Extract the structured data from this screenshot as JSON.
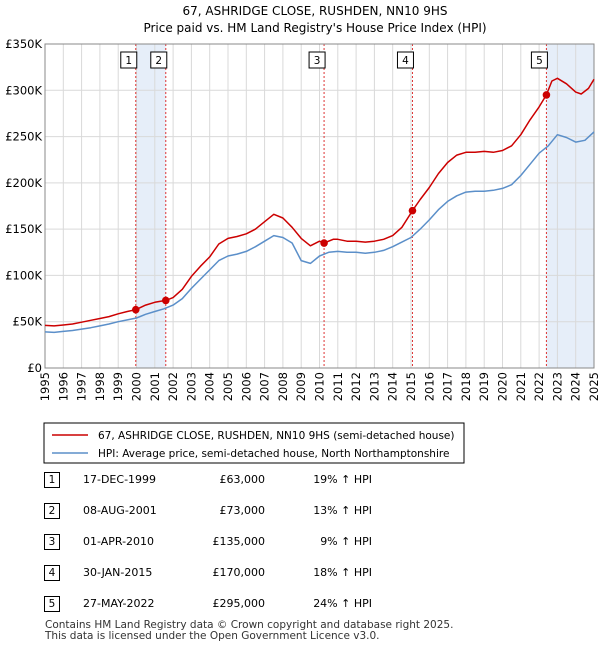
{
  "chart_data": {
    "type": "line",
    "title": "67, ASHRIDGE CLOSE, RUSHDEN, NN10 9HS",
    "subtitle": "Price paid vs. HM Land Registry's House Price Index (HPI)",
    "xlabel": "",
    "ylabel": "",
    "xlim": [
      1995,
      2025
    ],
    "ylim": [
      0,
      350000
    ],
    "grid": true,
    "x_ticks": [
      "1995",
      "1996",
      "1997",
      "1998",
      "1999",
      "2000",
      "2001",
      "2002",
      "2003",
      "2004",
      "2005",
      "2006",
      "2007",
      "2008",
      "2009",
      "2010",
      "2011",
      "2012",
      "2013",
      "2014",
      "2015",
      "2016",
      "2017",
      "2018",
      "2019",
      "2020",
      "2021",
      "2022",
      "2023",
      "2024",
      "2025"
    ],
    "y_ticks": [
      {
        "value": 0,
        "label": "£0"
      },
      {
        "value": 50000,
        "label": "£50K"
      },
      {
        "value": 100000,
        "label": "£100K"
      },
      {
        "value": 150000,
        "label": "£150K"
      },
      {
        "value": 200000,
        "label": "£200K"
      },
      {
        "value": 250000,
        "label": "£250K"
      },
      {
        "value": 300000,
        "label": "£300K"
      },
      {
        "value": 350000,
        "label": "£350K"
      }
    ],
    "series": [
      {
        "name": "67, ASHRIDGE CLOSE, RUSHDEN, NN10 9HS (semi-detached house)",
        "color": "#cc0000",
        "points": [
          [
            1995.0,
            46000
          ],
          [
            1995.5,
            45500
          ],
          [
            1996.0,
            46500
          ],
          [
            1996.5,
            47500
          ],
          [
            1997.0,
            49500
          ],
          [
            1997.5,
            51500
          ],
          [
            1998.0,
            53500
          ],
          [
            1998.5,
            55500
          ],
          [
            1999.0,
            58500
          ],
          [
            1999.5,
            61000
          ],
          [
            1999.96,
            63000
          ],
          [
            2000.5,
            68000
          ],
          [
            2001.0,
            71000
          ],
          [
            2001.6,
            73000
          ],
          [
            2002.0,
            76000
          ],
          [
            2002.5,
            85000
          ],
          [
            2003.0,
            99000
          ],
          [
            2003.5,
            110000
          ],
          [
            2004.0,
            120000
          ],
          [
            2004.5,
            134000
          ],
          [
            2005.0,
            140000
          ],
          [
            2005.5,
            142000
          ],
          [
            2006.0,
            145000
          ],
          [
            2006.5,
            150000
          ],
          [
            2007.0,
            158000
          ],
          [
            2007.5,
            166000
          ],
          [
            2008.0,
            162000
          ],
          [
            2008.5,
            152000
          ],
          [
            2009.0,
            140000
          ],
          [
            2009.5,
            132000
          ],
          [
            2010.0,
            137000
          ],
          [
            2010.25,
            135000
          ],
          [
            2010.75,
            139000
          ],
          [
            2011.0,
            139000
          ],
          [
            2011.5,
            137000
          ],
          [
            2012.0,
            137000
          ],
          [
            2012.5,
            136000
          ],
          [
            2013.0,
            137000
          ],
          [
            2013.5,
            139000
          ],
          [
            2014.0,
            143000
          ],
          [
            2014.5,
            152000
          ],
          [
            2015.08,
            170000
          ],
          [
            2015.5,
            182000
          ],
          [
            2016.0,
            195000
          ],
          [
            2016.5,
            210000
          ],
          [
            2017.0,
            222000
          ],
          [
            2017.5,
            230000
          ],
          [
            2018.0,
            233000
          ],
          [
            2018.5,
            233000
          ],
          [
            2019.0,
            234000
          ],
          [
            2019.5,
            233000
          ],
          [
            2020.0,
            235000
          ],
          [
            2020.5,
            240000
          ],
          [
            2021.0,
            252000
          ],
          [
            2021.5,
            268000
          ],
          [
            2022.0,
            282000
          ],
          [
            2022.4,
            295000
          ],
          [
            2022.7,
            310000
          ],
          [
            2023.0,
            313000
          ],
          [
            2023.5,
            307000
          ],
          [
            2024.0,
            298000
          ],
          [
            2024.3,
            296000
          ],
          [
            2024.7,
            302000
          ],
          [
            2025.0,
            312000
          ]
        ]
      },
      {
        "name": "HPI: Average price, semi-detached house, North Northamptonshire",
        "color": "#5b8fc9",
        "points": [
          [
            1995.0,
            39000
          ],
          [
            1995.5,
            38500
          ],
          [
            1996.0,
            39500
          ],
          [
            1996.5,
            40500
          ],
          [
            1997.0,
            42000
          ],
          [
            1997.5,
            43500
          ],
          [
            1998.0,
            45500
          ],
          [
            1998.5,
            47500
          ],
          [
            1999.0,
            50000
          ],
          [
            1999.5,
            52000
          ],
          [
            2000.0,
            54000
          ],
          [
            2000.5,
            58000
          ],
          [
            2001.0,
            61000
          ],
          [
            2001.5,
            64000
          ],
          [
            2002.0,
            68000
          ],
          [
            2002.5,
            75000
          ],
          [
            2003.0,
            86000
          ],
          [
            2003.5,
            96000
          ],
          [
            2004.0,
            106000
          ],
          [
            2004.5,
            116000
          ],
          [
            2005.0,
            121000
          ],
          [
            2005.5,
            123000
          ],
          [
            2006.0,
            126000
          ],
          [
            2006.5,
            131000
          ],
          [
            2007.0,
            137000
          ],
          [
            2007.5,
            143000
          ],
          [
            2008.0,
            141000
          ],
          [
            2008.5,
            135000
          ],
          [
            2009.0,
            116000
          ],
          [
            2009.5,
            113000
          ],
          [
            2010.0,
            121000
          ],
          [
            2010.5,
            125000
          ],
          [
            2011.0,
            126000
          ],
          [
            2011.5,
            125000
          ],
          [
            2012.0,
            125000
          ],
          [
            2012.5,
            124000
          ],
          [
            2013.0,
            125000
          ],
          [
            2013.5,
            127000
          ],
          [
            2014.0,
            131000
          ],
          [
            2014.5,
            136000
          ],
          [
            2015.0,
            141000
          ],
          [
            2015.5,
            150000
          ],
          [
            2016.0,
            160000
          ],
          [
            2016.5,
            171000
          ],
          [
            2017.0,
            180000
          ],
          [
            2017.5,
            186000
          ],
          [
            2018.0,
            190000
          ],
          [
            2018.5,
            191000
          ],
          [
            2019.0,
            191000
          ],
          [
            2019.5,
            192000
          ],
          [
            2020.0,
            194000
          ],
          [
            2020.5,
            198000
          ],
          [
            2021.0,
            208000
          ],
          [
            2021.5,
            220000
          ],
          [
            2022.0,
            232000
          ],
          [
            2022.5,
            240000
          ],
          [
            2023.0,
            252000
          ],
          [
            2023.5,
            249000
          ],
          [
            2024.0,
            244000
          ],
          [
            2024.5,
            246000
          ],
          [
            2025.0,
            255000
          ]
        ]
      }
    ],
    "sales": [
      {
        "label": "1",
        "x": 1999.96,
        "price": 63000,
        "date": "17-DEC-1999",
        "price_text": "£63,000",
        "hpi_text": "19% ↑ HPI"
      },
      {
        "label": "2",
        "x": 2001.6,
        "price": 73000,
        "date": "08-AUG-2001",
        "price_text": "£73,000",
        "hpi_text": "13% ↑ HPI"
      },
      {
        "label": "3",
        "x": 2010.25,
        "price": 135000,
        "date": "01-APR-2010",
        "price_text": "£135,000",
        "hpi_text": "9% ↑ HPI"
      },
      {
        "label": "4",
        "x": 2015.08,
        "price": 170000,
        "date": "30-JAN-2015",
        "price_text": "£170,000",
        "hpi_text": "18% ↑ HPI"
      },
      {
        "label": "5",
        "x": 2022.4,
        "price": 295000,
        "date": "27-MAY-2022",
        "price_text": "£295,000",
        "hpi_text": "24% ↑ HPI"
      }
    ],
    "shaded_spans": [
      [
        1999.96,
        2001.6
      ],
      [
        2022.4,
        2025.0
      ]
    ],
    "legend": {
      "placement": "bottom",
      "entries": [
        {
          "label": "67, ASHRIDGE CLOSE, RUSHDEN, NN10 9HS (semi-detached house)",
          "color": "#cc0000"
        },
        {
          "label": "HPI: Average price, semi-detached house, North Northamptonshire",
          "color": "#5b8fc9"
        }
      ]
    }
  },
  "footer": {
    "line1": "Contains HM Land Registry data © Crown copyright and database right 2025.",
    "line2": "This data is licensed under the Open Government Licence v3.0."
  }
}
